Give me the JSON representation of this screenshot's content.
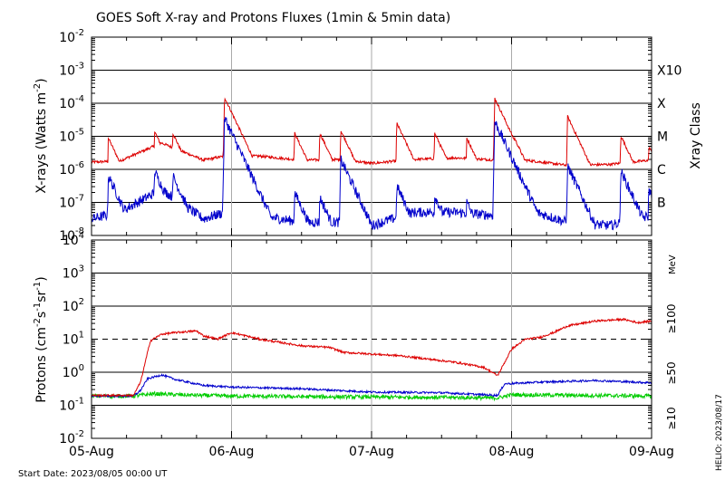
{
  "chart_data": [
    {
      "type": "line",
      "title": "GOES Soft X-ray and Protons Fluxes   (1min & 5min data)",
      "ylabel_main": "X-rays (Watts m",
      "ylabel_sup": "-2",
      "ylabel_close": ")",
      "log_scale": true,
      "ylim_exp": [
        -8,
        -2
      ],
      "ytick_labels": [
        {
          "base": "10",
          "exp": "-8"
        },
        {
          "base": "10",
          "exp": "-7"
        },
        {
          "base": "10",
          "exp": "-6"
        },
        {
          "base": "10",
          "exp": "-5"
        },
        {
          "base": "10",
          "exp": "-4"
        },
        {
          "base": "10",
          "exp": "-3"
        },
        {
          "base": "10",
          "exp": "-2"
        }
      ],
      "xray_class_title": "Xray Class",
      "xray_class_labels": [
        {
          "label": "B",
          "exp": -7
        },
        {
          "label": "C",
          "exp": -6
        },
        {
          "label": "M",
          "exp": -5
        },
        {
          "label": "X",
          "exp": -4
        },
        {
          "label": "X10",
          "exp": -3
        }
      ],
      "series": [
        {
          "color": "#dd0000",
          "baseline": [
            [
              0,
              -5.78
            ],
            [
              0.2,
              -5.75
            ],
            [
              0.5,
              -5.2
            ],
            [
              0.8,
              -5.72
            ],
            [
              0.95,
              -5.6
            ],
            [
              1.2,
              -5.6
            ],
            [
              1.5,
              -5.72
            ],
            [
              1.8,
              -5.7
            ],
            [
              2.0,
              -5.82
            ],
            [
              2.3,
              -5.7
            ],
            [
              2.6,
              -5.65
            ],
            [
              2.9,
              -5.72
            ],
            [
              3.1,
              -5.72
            ],
            [
              3.4,
              -5.88
            ],
            [
              3.7,
              -5.85
            ],
            [
              4.0,
              -5.72
            ]
          ],
          "peaks": [
            [
              0.12,
              -5.05
            ],
            [
              0.45,
              -4.85
            ],
            [
              0.58,
              -4.9
            ],
            [
              0.95,
              -3.82
            ],
            [
              1.45,
              -4.9
            ],
            [
              1.63,
              -4.9
            ],
            [
              1.78,
              -4.82
            ],
            [
              2.18,
              -4.6
            ],
            [
              2.45,
              -4.9
            ],
            [
              2.68,
              -5.05
            ],
            [
              2.88,
              -3.85
            ],
            [
              3.02,
              -5.05
            ],
            [
              3.4,
              -4.4
            ],
            [
              3.78,
              -4.98
            ],
            [
              3.98,
              -5.3
            ]
          ]
        },
        {
          "color": "#0000cc",
          "baseline": [
            [
              0,
              -7.5
            ],
            [
              0.2,
              -7.3
            ],
            [
              0.5,
              -6.6
            ],
            [
              0.8,
              -7.5
            ],
            [
              0.95,
              -7.3
            ],
            [
              1.2,
              -7.4
            ],
            [
              1.5,
              -7.6
            ],
            [
              1.8,
              -7.6
            ],
            [
              2.0,
              -7.7
            ],
            [
              2.3,
              -7.3
            ],
            [
              2.6,
              -7.3
            ],
            [
              2.9,
              -7.4
            ],
            [
              3.1,
              -7.2
            ],
            [
              3.4,
              -7.6
            ],
            [
              3.7,
              -7.7
            ],
            [
              4.0,
              -7.4
            ]
          ],
          "peaks": [
            [
              0.12,
              -6.2
            ],
            [
              0.45,
              -6.05
            ],
            [
              0.58,
              -6.2
            ],
            [
              0.95,
              -4.45
            ],
            [
              1.45,
              -6.7
            ],
            [
              1.63,
              -6.85
            ],
            [
              1.78,
              -5.7
            ],
            [
              2.18,
              -6.5
            ],
            [
              2.45,
              -6.8
            ],
            [
              2.68,
              -7.0
            ],
            [
              2.88,
              -4.55
            ],
            [
              3.02,
              -6.9
            ],
            [
              3.4,
              -5.9
            ],
            [
              3.78,
              -6.05
            ],
            [
              3.98,
              -6.6
            ]
          ]
        }
      ]
    },
    {
      "type": "line",
      "ylabel_main": "Protons (cm",
      "ylabel_sup1": "-2",
      "ylabel_mid": "s",
      "ylabel_sup2": "-1",
      "ylabel_mid2": "sr",
      "ylabel_sup3": "-1",
      "ylabel_close": ")",
      "log_scale": true,
      "ylim_exp": [
        -2,
        4
      ],
      "ytick_labels": [
        {
          "base": "10",
          "exp": "-2"
        },
        {
          "base": "10",
          "exp": "-1"
        },
        {
          "base": "10",
          "exp": "0"
        },
        {
          "base": "10",
          "exp": "1"
        },
        {
          "base": "10",
          "exp": "2"
        },
        {
          "base": "10",
          "exp": "3"
        },
        {
          "base": "10",
          "exp": "4"
        }
      ],
      "threshold_exp": 1,
      "unit_label": "MeV",
      "series": [
        {
          "name": "≥10",
          "color": "#dd0000",
          "points": [
            [
              0,
              -0.7
            ],
            [
              0.3,
              -0.7
            ],
            [
              0.35,
              -0.3
            ],
            [
              0.42,
              0.95
            ],
            [
              0.5,
              1.15
            ],
            [
              0.6,
              1.2
            ],
            [
              0.75,
              1.25
            ],
            [
              0.8,
              1.1
            ],
            [
              0.9,
              1.0
            ],
            [
              1.0,
              1.2
            ],
            [
              1.2,
              1.0
            ],
            [
              1.5,
              0.8
            ],
            [
              1.7,
              0.75
            ],
            [
              1.8,
              0.6
            ],
            [
              2.0,
              0.55
            ],
            [
              2.2,
              0.5
            ],
            [
              2.4,
              0.4
            ],
            [
              2.6,
              0.3
            ],
            [
              2.8,
              0.15
            ],
            [
              2.9,
              -0.1
            ],
            [
              2.92,
              0.05
            ],
            [
              3.0,
              0.7
            ],
            [
              3.1,
              1.0
            ],
            [
              3.2,
              1.05
            ],
            [
              3.3,
              1.2
            ],
            [
              3.4,
              1.4
            ],
            [
              3.6,
              1.55
            ],
            [
              3.8,
              1.6
            ],
            [
              3.9,
              1.5
            ],
            [
              4.0,
              1.55
            ]
          ]
        },
        {
          "name": "≥50",
          "color": "#0000cc",
          "points": [
            [
              0,
              -0.72
            ],
            [
              0.3,
              -0.72
            ],
            [
              0.35,
              -0.55
            ],
            [
              0.4,
              -0.2
            ],
            [
              0.5,
              -0.08
            ],
            [
              0.6,
              -0.22
            ],
            [
              0.8,
              -0.4
            ],
            [
              1.0,
              -0.45
            ],
            [
              1.5,
              -0.5
            ],
            [
              2.0,
              -0.6
            ],
            [
              2.5,
              -0.62
            ],
            [
              2.9,
              -0.7
            ],
            [
              2.95,
              -0.35
            ],
            [
              3.2,
              -0.3
            ],
            [
              3.6,
              -0.25
            ],
            [
              4.0,
              -0.32
            ]
          ]
        },
        {
          "name": "≥100",
          "color": "#00cc00",
          "points": [
            [
              0,
              -0.72
            ],
            [
              0.3,
              -0.72
            ],
            [
              0.45,
              -0.65
            ],
            [
              0.6,
              -0.68
            ],
            [
              1.0,
              -0.72
            ],
            [
              1.5,
              -0.74
            ],
            [
              2.0,
              -0.75
            ],
            [
              2.5,
              -0.76
            ],
            [
              2.9,
              -0.78
            ],
            [
              3.0,
              -0.68
            ],
            [
              3.5,
              -0.7
            ],
            [
              4.0,
              -0.72
            ]
          ]
        }
      ]
    }
  ],
  "x_axis": {
    "categories": [
      "05-Aug",
      "06-Aug",
      "07-Aug",
      "08-Aug",
      "09-Aug"
    ],
    "xlim": [
      0,
      4
    ]
  },
  "footer": {
    "start_date": "Start Date: 2023/08/05 00:00 UT",
    "credit": "HELIO: 2023/08/17"
  }
}
